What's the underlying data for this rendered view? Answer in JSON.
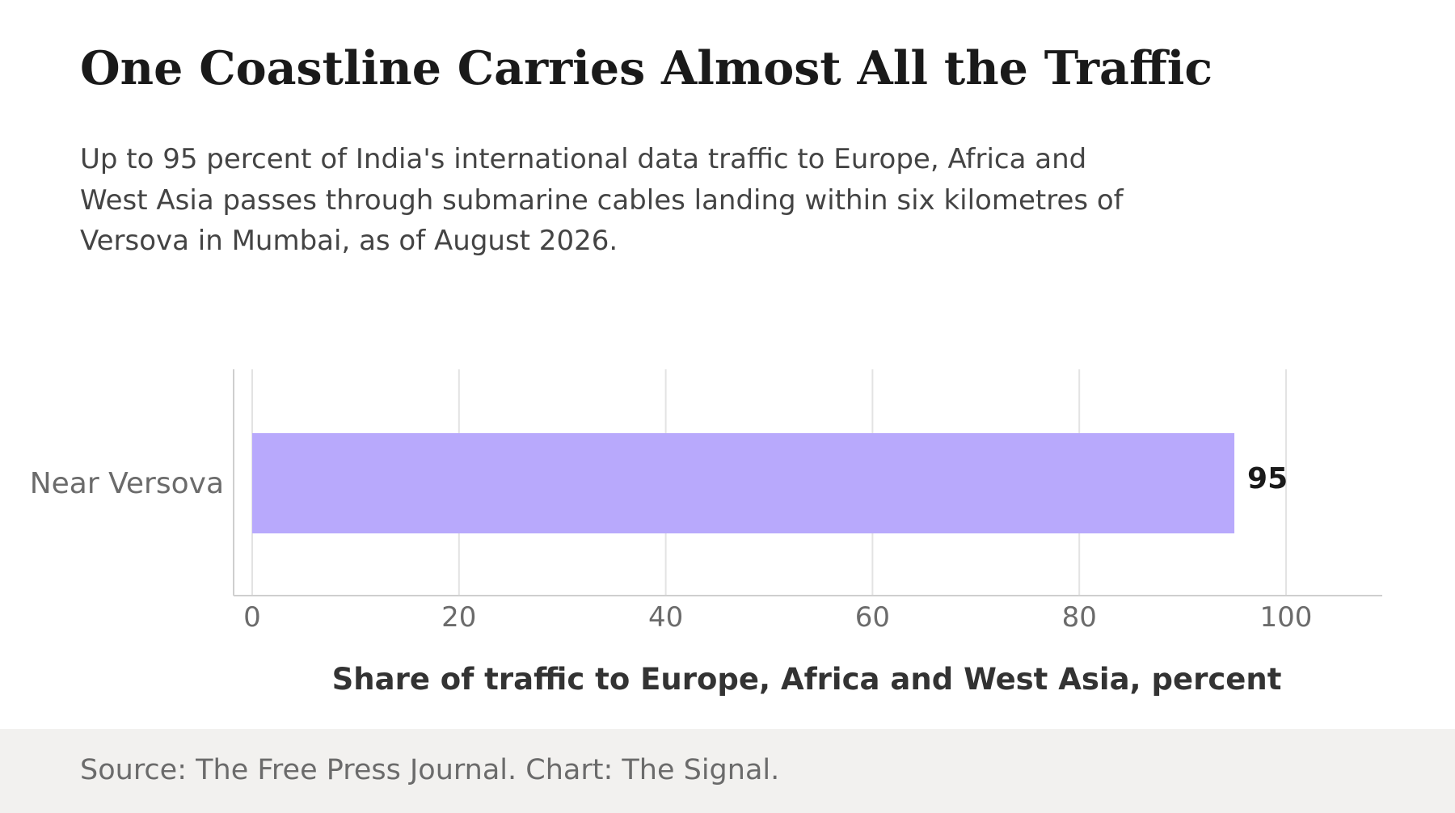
{
  "header": {
    "title": "One Coastline Carries Almost All the Traffic",
    "subtitle": "Up to 95 percent of India's international data traffic to Europe, Africa and West Asia passes through submarine cables landing within six kilometres of Versova in Mumbai, as of August 2026."
  },
  "footer": {
    "source": "Source: The Free Press Journal. Chart: The Signal."
  },
  "colors": {
    "bar": "#b8a9fc",
    "grid": "#e3e3e3",
    "axis": "#cfcfcf",
    "tick_text": "#6b6b6b",
    "label_text": "#1a1a1a",
    "footer_bg": "#f2f1ef"
  },
  "chart_data": {
    "type": "bar",
    "orientation": "horizontal",
    "categories": [
      "Near Versova"
    ],
    "values": [
      95
    ],
    "value_labels": [
      "95"
    ],
    "xlabel": "Share of traffic to Europe, Africa and West Asia, percent",
    "ylabel": "",
    "xlim": [
      0,
      100
    ],
    "xticks": [
      0,
      20,
      40,
      60,
      80,
      100
    ],
    "grid": true,
    "legend": "none"
  }
}
